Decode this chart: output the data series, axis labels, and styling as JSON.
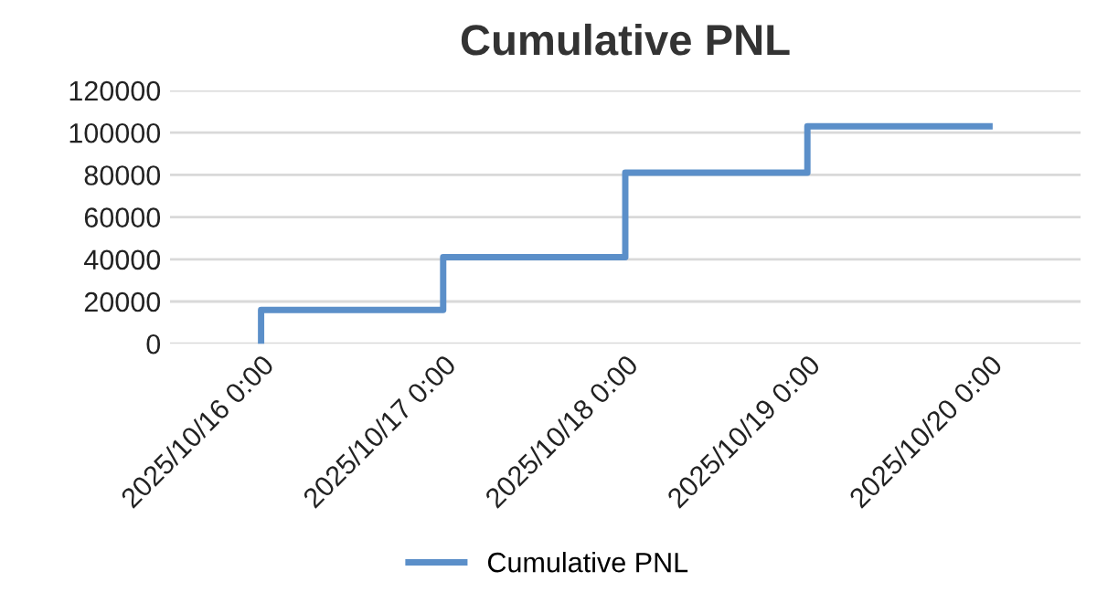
{
  "chart_data": {
    "type": "step",
    "title": "Cumulative PNL",
    "x": [
      "2025-10-16T00:00",
      "2025-10-16T00:00",
      "2025-10-17T00:00",
      "2025-10-18T00:00",
      "2025-10-19T00:00",
      "2025-10-20T00:00"
    ],
    "series": [
      {
        "name": "Cumulative PNL",
        "color": "#5b8fc9",
        "values": [
          0,
          16000,
          41000,
          81000,
          103000,
          103000
        ]
      }
    ],
    "xlim": [
      "2025-10-15T12:00",
      "2025-10-20T12:00"
    ],
    "xticks": [
      {
        "value": "2025-10-16T00:00",
        "label": "2025/10/16 0:00"
      },
      {
        "value": "2025-10-17T00:00",
        "label": "2025/10/17 0:00"
      },
      {
        "value": "2025-10-18T00:00",
        "label": "2025/10/18 0:00"
      },
      {
        "value": "2025-10-19T00:00",
        "label": "2025/10/19 0:00"
      },
      {
        "value": "2025-10-20T00:00",
        "label": "2025/10/20 0:00"
      }
    ],
    "ylim": [
      0,
      120000
    ],
    "yticks": [
      0,
      20000,
      40000,
      60000,
      80000,
      100000,
      120000
    ],
    "grid": "y",
    "legend": "bottom",
    "marker": "none",
    "line_style": "solid"
  }
}
